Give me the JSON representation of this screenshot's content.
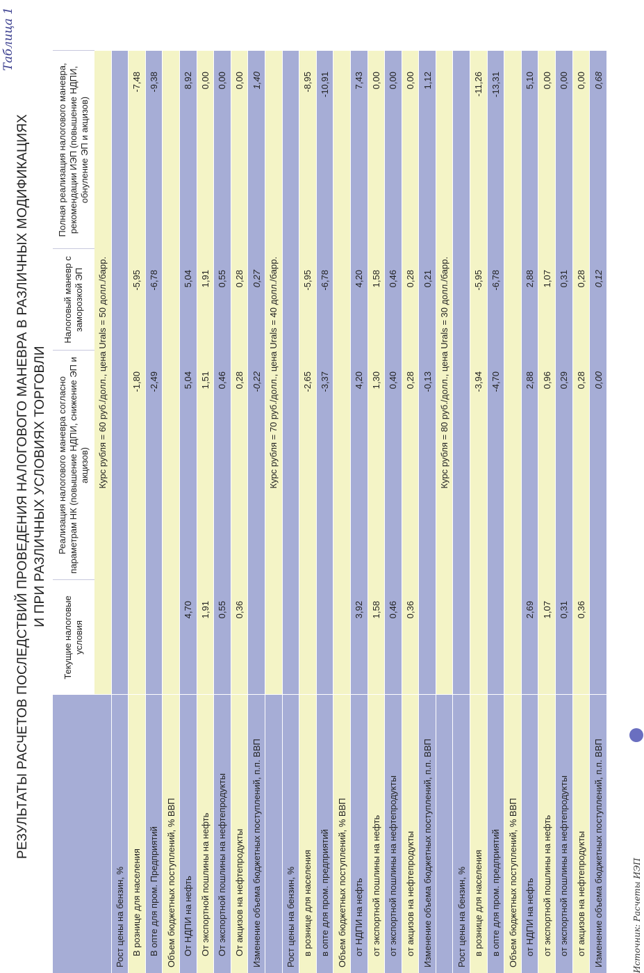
{
  "table_label": "Таблица 1",
  "title_line1": "РЕЗУЛЬТАТЫ РАСЧЕТОВ ПОСЛЕДСТВИЙ ПРОВЕДЕНИЯ НАЛОГОВОГО МАНЕВРА В РАЗЛИЧНЫХ МОДИФИКАЦИЯХ",
  "title_line2": "И ПРИ РАЗЛИЧНЫХ УСЛОВИЯХ ТОРГОВЛИ",
  "columns": [
    "Текущие налоговые условия",
    "Реализация налогового маневра согласно параметрам НК (повышение НДПИ, снижение ЭП и акцизов)",
    "Налоговый маневр с заморозкой ЭП",
    "Полная реализация налогового маневра, рекомендации ИЭП (повышение НДПИ, обнуление ЭП и акцизов)"
  ],
  "sections": [
    {
      "caption": "Курс рубля = 60 руб./долл., цена Urals = 50 долл./барр.",
      "rows": [
        {
          "label": "Рост цены на бензин, %",
          "values": [
            "",
            "",
            "",
            ""
          ],
          "style": "blue"
        },
        {
          "label": "В рознице для населения",
          "values": [
            "",
            "-1,80",
            "-5,95",
            "-7,48"
          ],
          "style": "yellow",
          "indent": true
        },
        {
          "label": "В опте для пром. Предприятий",
          "values": [
            "",
            "-2,49",
            "-6,78",
            "-9,38"
          ],
          "style": "blue",
          "indent": true
        },
        {
          "label": "Объем бюджетных поступлений, % ВВП",
          "values": [
            "",
            "",
            "",
            ""
          ],
          "style": "yellow"
        },
        {
          "label": "От НДПИ на нефть",
          "values": [
            "4,70",
            "5,04",
            "5,04",
            "8,92"
          ],
          "style": "blue",
          "indent": true
        },
        {
          "label": "От экспортной пошлины на нефть",
          "values": [
            "1,91",
            "1,51",
            "1,91",
            "0,00"
          ],
          "style": "yellow",
          "indent": true
        },
        {
          "label": "От экспортной пошлины на нефтепродукты",
          "values": [
            "0,55",
            "0,46",
            "0,55",
            "0,00"
          ],
          "style": "blue",
          "indent": true
        },
        {
          "label": "От акцизов на нефтепродукты",
          "values": [
            "0,36",
            "0,28",
            "0,28",
            "0,00"
          ],
          "style": "yellow",
          "indent": true
        },
        {
          "label": "Изменение объема бюджетных поступлений, п.п. ВВП",
          "values": [
            "",
            "-0,22",
            "0,27",
            "1,40"
          ],
          "style": "blue",
          "italic": true
        }
      ]
    },
    {
      "caption": "Курс рубля = 70 руб./долл., цена Urals = 40 долл./барр.",
      "rows": [
        {
          "label": "Рост цены на бензин, %",
          "values": [
            "",
            "",
            "",
            ""
          ],
          "style": "blue"
        },
        {
          "label": "в рознице для населения",
          "values": [
            "",
            "-2,65",
            "-5,95",
            "-8,95"
          ],
          "style": "yellow",
          "indent": true
        },
        {
          "label": "в опте для пром. предприятий",
          "values": [
            "",
            "-3,37",
            "-6,78",
            "-10,91"
          ],
          "style": "blue",
          "indent": true
        },
        {
          "label": "Объем бюджетных поступлений, % ВВП",
          "values": [
            "",
            "",
            "",
            ""
          ],
          "style": "yellow"
        },
        {
          "label": "от НДПИ на нефть",
          "values": [
            "3,92",
            "4,20",
            "4,20",
            "7,43"
          ],
          "style": "blue",
          "indent": true
        },
        {
          "label": "от экспортной пошлины на нефть",
          "values": [
            "1,58",
            "1,30",
            "1,58",
            "0,00"
          ],
          "style": "yellow",
          "indent": true
        },
        {
          "label": "от экспортной пошлины на нефтепродукты",
          "values": [
            "0,46",
            "0,40",
            "0,46",
            "0,00"
          ],
          "style": "blue",
          "indent": true
        },
        {
          "label": "от акцизов на нефтепродукты",
          "values": [
            "0,36",
            "0,28",
            "0,28",
            "0,00"
          ],
          "style": "yellow",
          "indent": true
        },
        {
          "label": "Изменение объема бюджетных поступлений, п.п. ВВП",
          "values": [
            "",
            "-0,13",
            "0,21",
            "1,12"
          ],
          "style": "blue"
        }
      ]
    },
    {
      "caption": "Курс рубля = 80 руб./долл., цена Urals = 30 долл./барр.",
      "rows": [
        {
          "label": "Рост цены на бензин, %",
          "values": [
            "",
            "",
            "",
            ""
          ],
          "style": "blue"
        },
        {
          "label": "в рознице для населения",
          "values": [
            "",
            "-3,94",
            "-5,95",
            "-11,26"
          ],
          "style": "yellow",
          "indent": true
        },
        {
          "label": "в опте для пром. предприятий",
          "values": [
            "",
            "-4,70",
            "-6,78",
            "-13,31"
          ],
          "style": "blue",
          "indent": true
        },
        {
          "label": "Объем бюджетных поступлений, % ВВП",
          "values": [
            "",
            "",
            "",
            ""
          ],
          "style": "yellow"
        },
        {
          "label": "от НДПИ на нефть",
          "values": [
            "2,69",
            "2,88",
            "2,88",
            "5,10"
          ],
          "style": "blue",
          "indent": true
        },
        {
          "label": "от экспортной пошлины на нефть",
          "values": [
            "1,07",
            "0,96",
            "1,07",
            "0,00"
          ],
          "style": "yellow",
          "indent": true
        },
        {
          "label": "от экспортной пошлины на нефтепродукты",
          "values": [
            "0,31",
            "0,29",
            "0,31",
            "0,00"
          ],
          "style": "blue",
          "indent": true
        },
        {
          "label": "от акцизов на нефтепродукты",
          "values": [
            "0,36",
            "0,28",
            "0,28",
            "0,00"
          ],
          "style": "yellow",
          "indent": true
        },
        {
          "label": "Изменение объема бюджетных поступлений, п.п. ВВП",
          "values": [
            "",
            "0,00",
            "0,12",
            "0,68"
          ],
          "style": "blue",
          "italic": true
        }
      ]
    }
  ],
  "footer_text": "Источник: Расчеты ИЭП"
}
